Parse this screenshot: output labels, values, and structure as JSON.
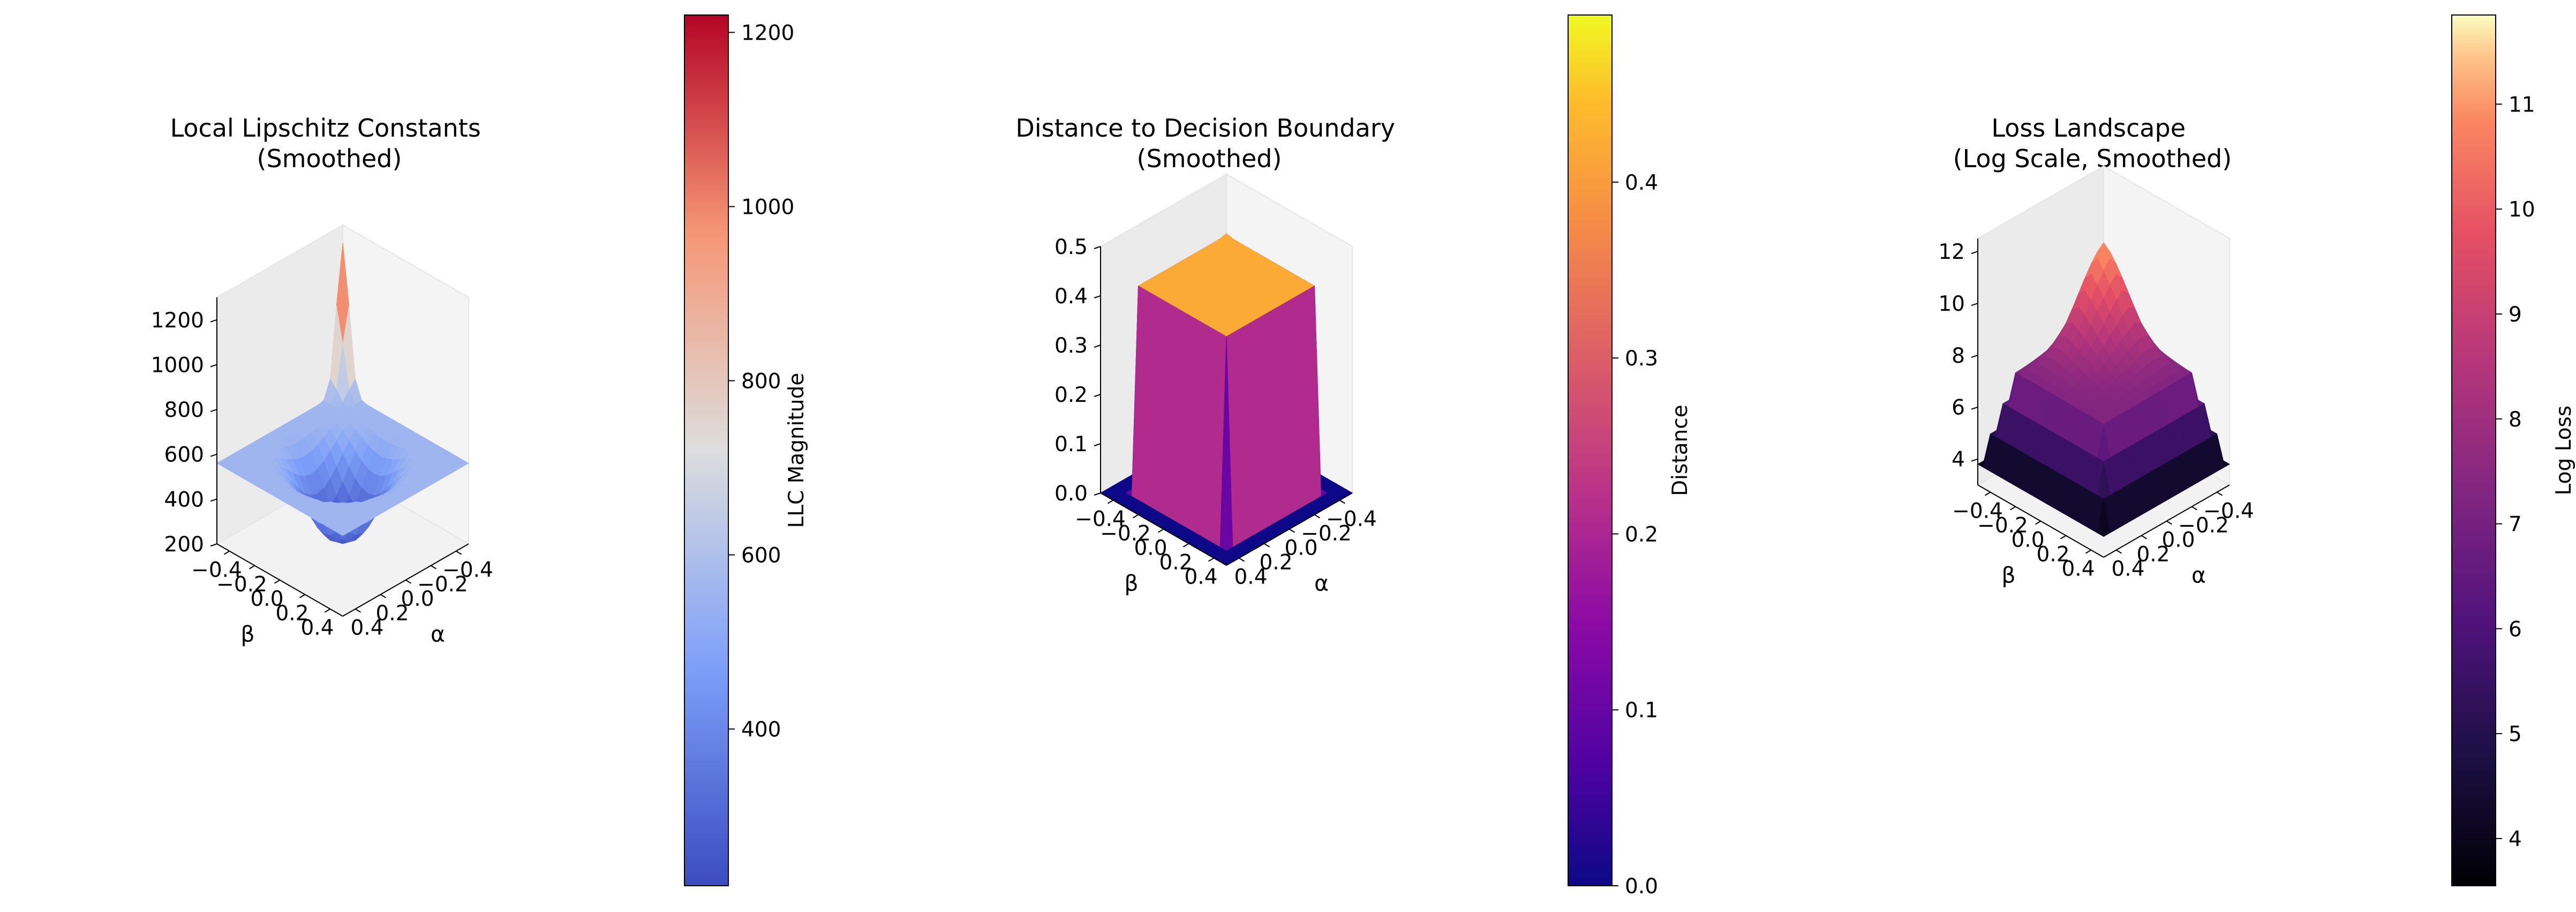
{
  "chart_data": [
    {
      "type": "surface3d",
      "title": "Local Lipschitz Constants\n(Smoothed)",
      "xlabel": "α",
      "ylabel": "β",
      "zlabel": "",
      "x_range": [
        -0.5,
        0.5
      ],
      "y_range": [
        -0.5,
        0.5
      ],
      "x_ticks": [
        -0.4,
        -0.2,
        0.0,
        0.2,
        0.4
      ],
      "x_tick_labels": [
        "−0.4",
        "−0.2",
        "0.0",
        "0.2",
        "0.4"
      ],
      "y_ticks": [
        -0.4,
        -0.2,
        0.0,
        0.2,
        0.4
      ],
      "y_tick_labels": [
        "−0.4",
        "−0.2",
        "0.0",
        "0.2",
        "0.4"
      ],
      "zlim": [
        200,
        1300
      ],
      "z_ticks": [
        200,
        400,
        600,
        800,
        1000,
        1200
      ],
      "z_tick_labels": [
        "200",
        "400",
        "600",
        "800",
        "1000",
        "1200"
      ],
      "colormap": "coolwarm",
      "colorbar": {
        "label": "LLC Magnitude",
        "range": [
          220,
          1220
        ],
        "ticks": [
          400,
          600,
          800,
          1000,
          1200
        ],
        "tick_labels": [
          "400",
          "600",
          "800",
          "1000",
          "1200"
        ]
      },
      "surface": {
        "grid": [
          -0.5,
          -0.45,
          -0.4,
          -0.35,
          -0.3,
          -0.25,
          -0.2,
          -0.15,
          -0.1,
          -0.05,
          0.0,
          0.05,
          0.1,
          0.15,
          0.2,
          0.25,
          0.3,
          0.35,
          0.4,
          0.45,
          0.5
        ],
        "description": "central basin ~230, rim plateau ~560-620, spike ~1220 at α=-0.5, β=-0.5"
      }
    },
    {
      "type": "surface3d",
      "title": "Distance to Decision Boundary\n(Smoothed)",
      "xlabel": "α",
      "ylabel": "β",
      "zlabel": "",
      "x_range": [
        -0.5,
        0.5
      ],
      "y_range": [
        -0.5,
        0.5
      ],
      "x_ticks": [
        -0.4,
        -0.2,
        0.0,
        0.2,
        0.4
      ],
      "x_tick_labels": [
        "−0.4",
        "−0.2",
        "0.0",
        "0.2",
        "0.4"
      ],
      "y_ticks": [
        -0.4,
        -0.2,
        0.0,
        0.2,
        0.4
      ],
      "y_tick_labels": [
        "−0.4",
        "−0.2",
        "0.0",
        "0.2",
        "0.4"
      ],
      "zlim": [
        0,
        0.5
      ],
      "z_ticks": [
        0.0,
        0.1,
        0.2,
        0.3,
        0.4,
        0.5
      ],
      "z_tick_labels": [
        "0.0",
        "0.1",
        "0.2",
        "0.3",
        "0.4",
        "0.5"
      ],
      "colormap": "plasma",
      "colorbar": {
        "label": "Distance",
        "range": [
          0.0,
          0.495
        ],
        "ticks": [
          0.0,
          0.1,
          0.2,
          0.3,
          0.4
        ],
        "tick_labels": [
          "0.0",
          "0.1",
          "0.2",
          "0.3",
          "0.4"
        ]
      },
      "surface": {
        "description": "zero outside |α|,|β|>0.35; plateau ~0.42 inside; peak ~0.495 near α=-0.5, β=-0.5 ridge"
      }
    },
    {
      "type": "surface3d",
      "title": "Loss Landscape\n(Log Scale, Smoothed)",
      "xlabel": "α",
      "ylabel": "β",
      "zlabel": "",
      "x_range": [
        -0.5,
        0.5
      ],
      "y_range": [
        -0.5,
        0.5
      ],
      "x_ticks": [
        -0.4,
        -0.2,
        0.0,
        0.2,
        0.4
      ],
      "x_tick_labels": [
        "−0.4",
        "−0.2",
        "0.0",
        "0.2",
        "0.4"
      ],
      "y_ticks": [
        -0.4,
        -0.2,
        0.0,
        0.2,
        0.4
      ],
      "y_tick_labels": [
        "−0.4",
        "−0.2",
        "0.0",
        "0.2",
        "0.4"
      ],
      "zlim": [
        3,
        12.5
      ],
      "z_ticks": [
        4,
        6,
        8,
        10,
        12
      ],
      "z_tick_labels": [
        "4",
        "6",
        "8",
        "10",
        "12"
      ],
      "colormap": "magma",
      "colorbar": {
        "label": "Log Loss",
        "range": [
          3.55,
          11.85
        ],
        "ticks": [
          4,
          5,
          6,
          7,
          8,
          9,
          10,
          11
        ],
        "tick_labels": [
          "4",
          "5",
          "6",
          "7",
          "8",
          "9",
          "10",
          "11"
        ]
      },
      "surface": {
        "description": "edges ~3.6-5, rising to plateau ~7.3 and dome peak ~11.8 near α=-0.5, β=-0.5 corner"
      }
    }
  ]
}
